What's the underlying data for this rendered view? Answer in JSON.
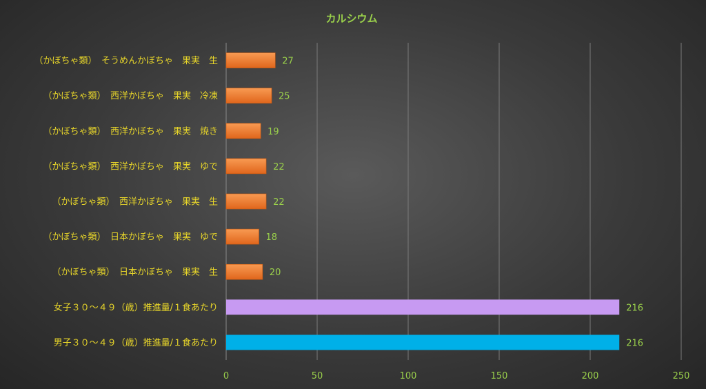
{
  "chart_data": {
    "type": "bar",
    "orientation": "horizontal",
    "title": "カルシウム",
    "xlabel": "",
    "ylabel": "",
    "xlim": [
      0,
      250
    ],
    "xticks": [
      0,
      50,
      100,
      150,
      200,
      250
    ],
    "grid": true,
    "categories": [
      "（かぼちゃ類）　そうめんかぼちゃ　果実　生",
      "（かぼちゃ類）　西洋かぼちゃ　果実　冷凍",
      "（かぼちゃ類）　西洋かぼちゃ　果実　焼き",
      "（かぼちゃ類）　西洋かぼちゃ　果実　ゆで",
      "（かぼちゃ類）　西洋かぼちゃ　果実　生",
      "（かぼちゃ類）　日本かぼちゃ　果実　ゆで",
      "（かぼちゃ類）　日本かぼちゃ　果実　生",
      "女子３０～４９（歳）推進量/１食あたり",
      "男子３０～４９（歳）推進量/１食あたり"
    ],
    "values": [
      27,
      25,
      19,
      22,
      22,
      18,
      20,
      216,
      216
    ],
    "colors": [
      "#f07a2a",
      "#f07a2a",
      "#f07a2a",
      "#f07a2a",
      "#f07a2a",
      "#f07a2a",
      "#f07a2a",
      "#c79af2",
      "#00b0e8"
    ]
  }
}
